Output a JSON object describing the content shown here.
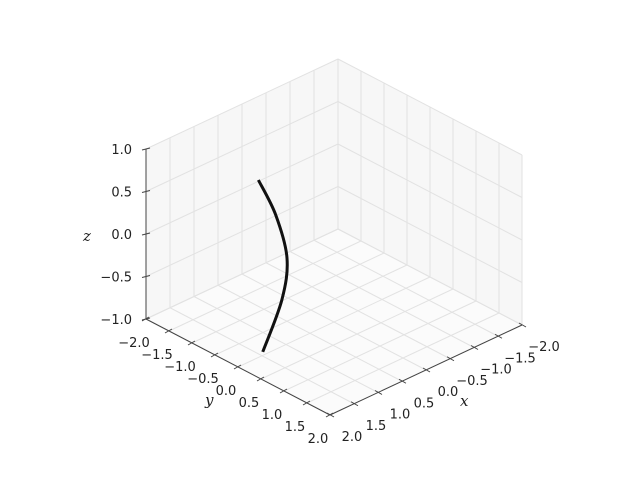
{
  "chart_data": {
    "type": "line3d",
    "title": "",
    "xlabel": "x",
    "ylabel": "y",
    "zlabel": "z",
    "xlim": [
      -2,
      2
    ],
    "ylim": [
      -2,
      2
    ],
    "zlim": [
      -1,
      1
    ],
    "xticks": [
      "−2.0",
      "−1.5",
      "−1.0",
      "−0.5",
      "0.0",
      "0.5",
      "1.0",
      "1.5",
      "2.0"
    ],
    "yticks": [
      "−2.0",
      "−1.5",
      "−1.0",
      "−0.5",
      "0.0",
      "0.5",
      "1.0",
      "1.5",
      "2.0"
    ],
    "zticks": [
      "−1.0",
      "−0.5",
      "0.0",
      "0.5",
      "1.0"
    ],
    "grid": true,
    "line_color": "#111111",
    "pane_color": "#f7f7f7",
    "grid_color": "#e2e2e2",
    "series": [
      {
        "x": [
          1.24,
          1.07,
          0.96,
          1.0,
          1.59
        ],
        "y": [
          -0.35,
          -0.15,
          -0.02,
          -0.09,
          0.11
        ],
        "z": [
          0.9,
          0.5,
          0.0,
          -0.5,
          -0.9
        ]
      }
    ]
  }
}
